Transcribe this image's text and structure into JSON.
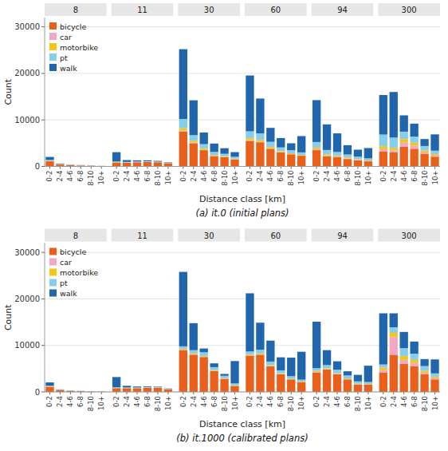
{
  "chart_data": [
    {
      "type": "bar",
      "stacked": true,
      "title": "(a)  it.0 (initial plans)",
      "x_label": "Distance class [km]",
      "y_label": "Count",
      "categories": [
        "0-2",
        "2-4",
        "4-6",
        "6-8",
        "8-10",
        "10+"
      ],
      "ylim": [
        0,
        32000
      ],
      "yticks": [
        0,
        10000,
        20000,
        30000
      ],
      "grid": true,
      "legend": "upper left",
      "facets": [
        {
          "name": "8",
          "series": [
            {
              "name": "bicycle",
              "color": "#E8601C",
              "values": [
                1100,
                400,
                250,
                200,
                150,
                100
              ]
            },
            {
              "name": "car",
              "color": "#F2A8C4",
              "values": [
                30,
                15,
                10,
                8,
                5,
                3
              ]
            },
            {
              "name": "motorbike",
              "color": "#F5C518",
              "values": [
                60,
                30,
                20,
                15,
                10,
                8
              ]
            },
            {
              "name": "pt",
              "color": "#87CEEB",
              "values": [
                200,
                80,
                50,
                40,
                30,
                20
              ]
            },
            {
              "name": "walk",
              "color": "#2166AC",
              "values": [
                650,
                100,
                50,
                30,
                20,
                10
              ]
            }
          ]
        },
        {
          "name": "11",
          "series": [
            {
              "name": "bicycle",
              "color": "#E8601C",
              "values": [
                850,
                800,
                900,
                950,
                900,
                700
              ]
            },
            {
              "name": "car",
              "color": "#F2A8C4",
              "values": [
                20,
                15,
                15,
                15,
                15,
                10
              ]
            },
            {
              "name": "motorbike",
              "color": "#F5C518",
              "values": [
                40,
                35,
                30,
                30,
                25,
                20
              ]
            },
            {
              "name": "pt",
              "color": "#87CEEB",
              "values": [
                150,
                120,
                120,
                120,
                110,
                90
              ]
            },
            {
              "name": "walk",
              "color": "#2166AC",
              "values": [
                2000,
                400,
                250,
                200,
                150,
                80
              ]
            }
          ]
        },
        {
          "name": "30",
          "series": [
            {
              "name": "bicycle",
              "color": "#E8601C",
              "values": [
                7500,
                5000,
                3500,
                2200,
                2000,
                1500
              ]
            },
            {
              "name": "car",
              "color": "#F2A8C4",
              "values": [
                200,
                120,
                90,
                70,
                55,
                45
              ]
            },
            {
              "name": "motorbike",
              "color": "#F5C518",
              "values": [
                500,
                400,
                300,
                200,
                160,
                130
              ]
            },
            {
              "name": "pt",
              "color": "#87CEEB",
              "values": [
                2000,
                1200,
                900,
                650,
                500,
                400
              ]
            },
            {
              "name": "walk",
              "color": "#2166AC",
              "values": [
                15000,
                7500,
                2500,
                1800,
                1200,
                1000
              ]
            }
          ]
        },
        {
          "name": "60",
          "series": [
            {
              "name": "bicycle",
              "color": "#E8601C",
              "values": [
                5500,
                5200,
                3800,
                3000,
                2600,
                2300
              ]
            },
            {
              "name": "car",
              "color": "#F2A8C4",
              "values": [
                150,
                120,
                90,
                70,
                55,
                45
              ]
            },
            {
              "name": "motorbike",
              "color": "#F5C518",
              "values": [
                400,
                380,
                300,
                220,
                170,
                130
              ]
            },
            {
              "name": "pt",
              "color": "#87CEEB",
              "values": [
                1500,
                1400,
                1100,
                800,
                650,
                550
              ]
            },
            {
              "name": "walk",
              "color": "#2166AC",
              "values": [
                12000,
                7500,
                3000,
                2000,
                1500,
                3500
              ]
            }
          ]
        },
        {
          "name": "94",
          "series": [
            {
              "name": "bicycle",
              "color": "#E8601C",
              "values": [
                3500,
                2200,
                2000,
                1600,
                1300,
                1100
              ]
            },
            {
              "name": "car",
              "color": "#F2A8C4",
              "values": [
                200,
                160,
                130,
                110,
                90,
                65
              ]
            },
            {
              "name": "motorbike",
              "color": "#F5C518",
              "values": [
                350,
                280,
                230,
                200,
                160,
                130
              ]
            },
            {
              "name": "pt",
              "color": "#87CEEB",
              "values": [
                1200,
                900,
                750,
                650,
                550,
                450
              ]
            },
            {
              "name": "walk",
              "color": "#2166AC",
              "values": [
                9000,
                5500,
                4000,
                2000,
                1500,
                2200
              ]
            }
          ]
        },
        {
          "name": "300",
          "series": [
            {
              "name": "bicycle",
              "color": "#E8601C",
              "values": [
                3200,
                3000,
                4200,
                3800,
                2700,
                2100
              ]
            },
            {
              "name": "car",
              "color": "#F2A8C4",
              "values": [
                500,
                450,
                900,
                650,
                320,
                220
              ]
            },
            {
              "name": "motorbike",
              "color": "#F5C518",
              "values": [
                650,
                550,
                780,
                650,
                420,
                320
              ]
            },
            {
              "name": "pt",
              "color": "#87CEEB",
              "values": [
                2500,
                2200,
                1600,
                1300,
                950,
                750
              ]
            },
            {
              "name": "walk",
              "color": "#2166AC",
              "values": [
                8500,
                9800,
                3500,
                2800,
                1500,
                3500
              ]
            }
          ]
        }
      ]
    },
    {
      "type": "bar",
      "stacked": true,
      "title": "(b)  it.1000 (calibrated plans)",
      "x_label": "Distance class [km]",
      "y_label": "Count",
      "categories": [
        "0-2",
        "2-4",
        "4-6",
        "6-8",
        "8-10",
        "10+"
      ],
      "ylim": [
        0,
        32000
      ],
      "yticks": [
        0,
        10000,
        20000,
        30000
      ],
      "grid": true,
      "legend": "upper left",
      "facets": [
        {
          "name": "8",
          "series": [
            {
              "name": "bicycle",
              "color": "#E8601C",
              "values": [
                1100,
                350,
                200,
                150,
                100,
                60
              ]
            },
            {
              "name": "car",
              "color": "#F2A8C4",
              "values": [
                30,
                15,
                10,
                8,
                5,
                3
              ]
            },
            {
              "name": "motorbike",
              "color": "#F5C518",
              "values": [
                60,
                30,
                20,
                15,
                10,
                8
              ]
            },
            {
              "name": "pt",
              "color": "#87CEEB",
              "values": [
                150,
                60,
                40,
                30,
                25,
                15
              ]
            },
            {
              "name": "walk",
              "color": "#2166AC",
              "values": [
                700,
                80,
                40,
                25,
                15,
                8
              ]
            }
          ]
        },
        {
          "name": "11",
          "series": [
            {
              "name": "bicycle",
              "color": "#E8601C",
              "values": [
                800,
                800,
                800,
                900,
                900,
                600
              ]
            },
            {
              "name": "car",
              "color": "#F2A8C4",
              "values": [
                20,
                15,
                15,
                15,
                15,
                10
              ]
            },
            {
              "name": "motorbike",
              "color": "#F5C518",
              "values": [
                40,
                35,
                30,
                30,
                25,
                20
              ]
            },
            {
              "name": "pt",
              "color": "#87CEEB",
              "values": [
                140,
                120,
                120,
                120,
                110,
                80
              ]
            },
            {
              "name": "walk",
              "color": "#2166AC",
              "values": [
                2200,
                350,
                200,
                150,
                100,
                50
              ]
            }
          ]
        },
        {
          "name": "30",
          "series": [
            {
              "name": "bicycle",
              "color": "#E8601C",
              "values": [
                9000,
                8000,
                7500,
                4500,
                2800,
                1300
              ]
            },
            {
              "name": "car",
              "color": "#F2A8C4",
              "values": [
                100,
                80,
                65,
                50,
                42,
                32
              ]
            },
            {
              "name": "motorbike",
              "color": "#F5C518",
              "values": [
                200,
                200,
                170,
                140,
                110,
                85
              ]
            },
            {
              "name": "pt",
              "color": "#87CEEB",
              "values": [
                500,
                700,
                800,
                650,
                520,
                420
              ]
            },
            {
              "name": "walk",
              "color": "#2166AC",
              "values": [
                16000,
                5800,
                800,
                800,
                400,
                4800
              ]
            }
          ]
        },
        {
          "name": "60",
          "series": [
            {
              "name": "bicycle",
              "color": "#E8601C",
              "values": [
                7800,
                8000,
                5500,
                3800,
                2700,
                2100
              ]
            },
            {
              "name": "car",
              "color": "#F2A8C4",
              "values": [
                100,
                80,
                65,
                50,
                42,
                32
              ]
            },
            {
              "name": "motorbike",
              "color": "#F5C518",
              "values": [
                200,
                200,
                170,
                140,
                110,
                85
              ]
            },
            {
              "name": "pt",
              "color": "#87CEEB",
              "values": [
                600,
                800,
                800,
                650,
                520,
                420
              ]
            },
            {
              "name": "walk",
              "color": "#2166AC",
              "values": [
                12500,
                5800,
                4500,
                2800,
                4000,
                6000
              ]
            }
          ]
        },
        {
          "name": "94",
          "series": [
            {
              "name": "bicycle",
              "color": "#E8601C",
              "values": [
                4200,
                4800,
                3800,
                2700,
                1600,
                1600
              ]
            },
            {
              "name": "car",
              "color": "#F2A8C4",
              "values": [
                100,
                80,
                65,
                50,
                42,
                32
              ]
            },
            {
              "name": "motorbike",
              "color": "#F5C518",
              "values": [
                200,
                200,
                170,
                140,
                110,
                85
              ]
            },
            {
              "name": "pt",
              "color": "#87CEEB",
              "values": [
                600,
                700,
                750,
                650,
                520,
                420
              ]
            },
            {
              "name": "walk",
              "color": "#2166AC",
              "values": [
                10000,
                3200,
                1800,
                900,
                1400,
                3500
              ]
            }
          ]
        },
        {
          "name": "300",
          "series": [
            {
              "name": "bicycle",
              "color": "#E8601C",
              "values": [
                4200,
                8000,
                6000,
                5500,
                3800,
                2700
              ]
            },
            {
              "name": "car",
              "color": "#F2A8C4",
              "values": [
                500,
                3800,
                900,
                700,
                330,
                220
              ]
            },
            {
              "name": "motorbike",
              "color": "#F5C518",
              "values": [
                550,
                900,
                800,
                680,
                430,
                320
              ]
            },
            {
              "name": "pt",
              "color": "#87CEEB",
              "values": [
                650,
                1200,
                1700,
                1350,
                1000,
                750
              ]
            },
            {
              "name": "walk",
              "color": "#2166AC",
              "values": [
                11000,
                3000,
                3500,
                2600,
                1500,
                3000
              ]
            }
          ]
        }
      ]
    }
  ]
}
